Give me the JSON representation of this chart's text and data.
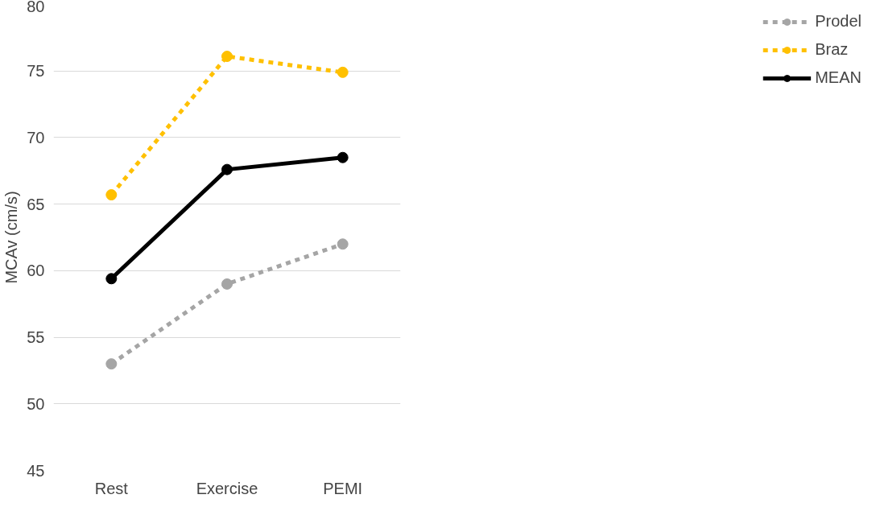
{
  "chart_data": {
    "type": "line",
    "ylabel": "MCAv (cm/s)",
    "categories": [
      "Rest",
      "Exercise",
      "PEMI"
    ],
    "series": [
      {
        "name": "Prodel",
        "color": "#a5a5a5",
        "line_style": "dashed",
        "values": [
          53.0,
          59.0,
          62.0
        ]
      },
      {
        "name": "Braz",
        "color": "#ffc000",
        "line_style": "dashed",
        "values": [
          65.7,
          76.1,
          74.9
        ]
      },
      {
        "name": "MEAN",
        "color": "#000000",
        "line_style": "solid",
        "values": [
          59.4,
          67.6,
          68.5
        ]
      }
    ],
    "ylim": [
      45,
      80
    ],
    "yticks": [
      45,
      50,
      55,
      60,
      65,
      70,
      75,
      80
    ],
    "grid": "y",
    "legend": "right",
    "marker": "circle"
  }
}
